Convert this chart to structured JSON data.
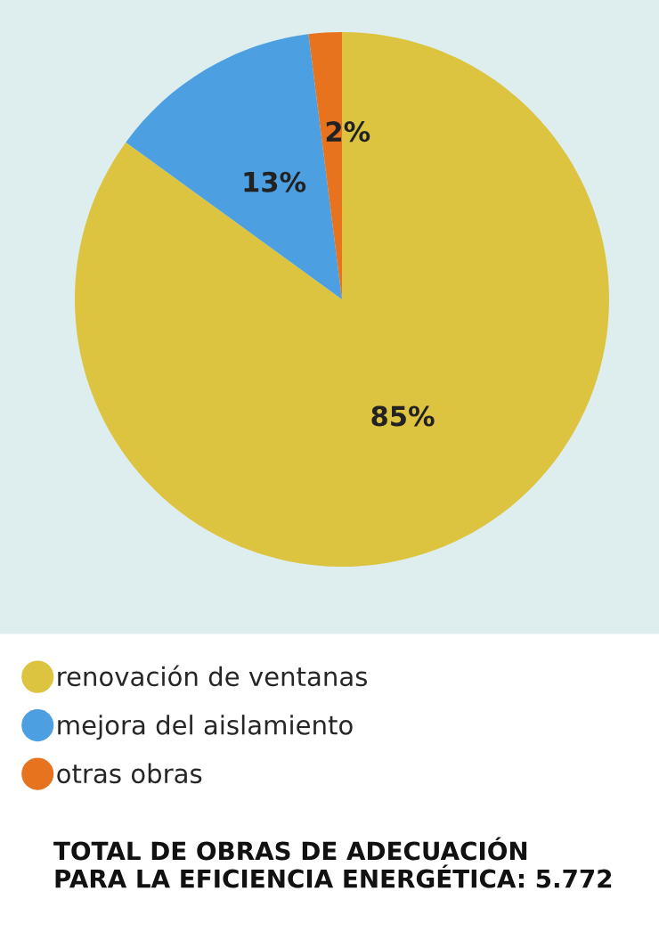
{
  "chart_data": {
    "type": "pie",
    "categories": [
      "renovación de ventanas",
      "mejora del aislamiento",
      "otras obras"
    ],
    "values": [
      85,
      13,
      2
    ],
    "colors": [
      "#dcc440",
      "#4c9fe0",
      "#e8731f"
    ],
    "value_labels": [
      "85%",
      "13%",
      "2%"
    ],
    "legend": "bottom left",
    "annotations": [
      "TOTAL DE OBRAS DE ADECUACIÓN\nPARA LA EFICIENCIA ENERGÉTICA: 5.772"
    ]
  }
}
